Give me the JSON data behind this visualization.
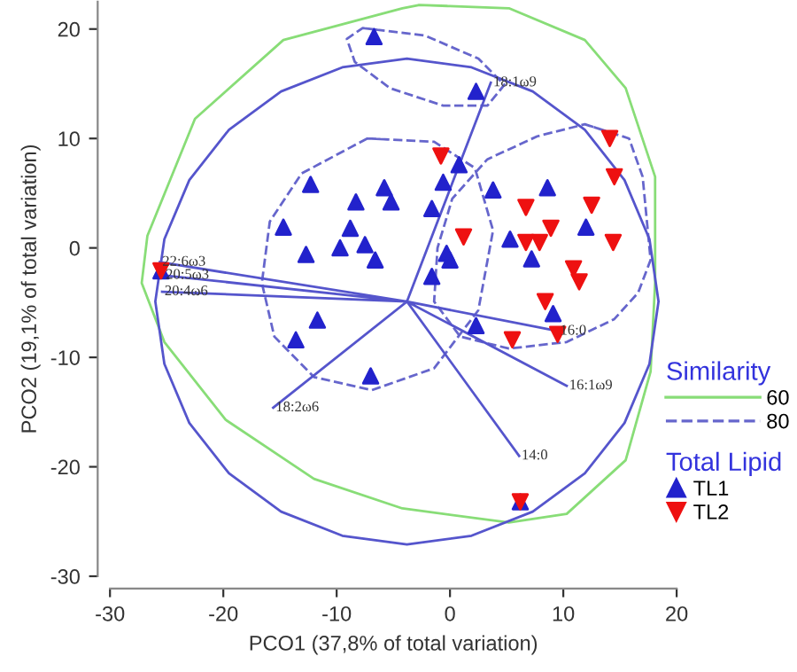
{
  "chart_data": {
    "type": "scatter",
    "xlabel": "PCO1 (37,8% of total variation)",
    "ylabel": "PCO2 (19,1% of total variation)",
    "xlim": [
      -30,
      20
    ],
    "xticks": [
      -30,
      -20,
      -10,
      0,
      10,
      20
    ],
    "ylim": [
      -30,
      22.5
    ],
    "yticks": [
      -30,
      -20,
      -10,
      0,
      10,
      20
    ],
    "grid": false,
    "legend": "right",
    "legend_title": "Similarity",
    "series": [
      {
        "type": "line",
        "name": "60",
        "color": "#88dd77",
        "line_style": "solid",
        "x": [
          -2.7,
          5.2,
          11.9,
          15.5,
          18.1,
          18.1,
          17.7,
          15.5,
          10.3,
          5.2,
          -4.2,
          -12.0,
          -19.8,
          -25.2,
          -27.2,
          -26.7,
          -22.5,
          -14.7,
          -4.2,
          -2.7
        ],
        "values": [
          22.2,
          21.9,
          19.0,
          14.6,
          6.5,
          -3.2,
          -11.3,
          -19.4,
          -24.3,
          -25.1,
          -23.8,
          -21.1,
          -15.7,
          -8.6,
          -3.2,
          1.1,
          11.8,
          19.0,
          21.9,
          22.2
        ]
      },
      {
        "type": "line",
        "name": "80",
        "color": "#6666cc",
        "line_style": "dashed",
        "x": [
          -7.7,
          -2.2,
          2.5,
          4.8,
          3.3,
          -0.6,
          -5.3,
          -8.4,
          -9.1,
          -7.7,
          null,
          -7.3,
          -1.4,
          2.2,
          3.8,
          2.5,
          -1.4,
          -6.9,
          -12.0,
          -15.5,
          -16.6,
          -15.9,
          -13.1,
          -7.3,
          null,
          11.9,
          15.8,
          17.0,
          17.7,
          16.6,
          14.5,
          10.3,
          5.2,
          0.9,
          -1.4,
          -1.1,
          0.2,
          3.3,
          7.7,
          11.9
        ],
        "values": [
          20.1,
          19.4,
          17.3,
          14.9,
          13.0,
          13.0,
          14.6,
          17.0,
          19.1,
          20.1,
          null,
          10.0,
          9.7,
          7.3,
          1.6,
          -5.7,
          -11.0,
          -13.0,
          -11.8,
          -8.1,
          -3.2,
          2.4,
          6.8,
          10.0,
          null,
          11.3,
          10.0,
          6.5,
          -1.1,
          -4.1,
          -6.5,
          -8.6,
          -9.2,
          -8.1,
          -4.9,
          0.0,
          4.5,
          8.1,
          10.2,
          11.3
        ]
      },
      {
        "type": "line",
        "color": "#5555cc",
        "line_style": "solid",
        "x": [
          18.4,
          17.6,
          15.4,
          11.9,
          7.3,
          1.9,
          -3.8,
          -9.5,
          -14.9,
          -19.5,
          -23.0,
          -25.2,
          -26.0,
          -25.2,
          -23.0,
          -19.5,
          -14.9,
          -9.5,
          -3.8,
          1.9,
          7.3,
          11.9,
          15.4,
          17.6,
          18.4
        ],
        "values": [
          -4.9,
          0.8,
          6.2,
          10.8,
          14.3,
          16.5,
          17.3,
          16.5,
          14.3,
          10.8,
          6.2,
          0.8,
          -4.9,
          -10.6,
          -16.0,
          -20.6,
          -24.1,
          -26.3,
          -27.1,
          -26.3,
          -24.1,
          -20.6,
          -16.0,
          -10.6,
          -4.9
        ]
      },
      {
        "type": "line",
        "color": "#5555cc",
        "line_style": "solid",
        "x": [
          -3.8,
          3.6,
          null,
          -3.8,
          -25.6,
          null,
          -3.8,
          -25.3,
          null,
          -3.8,
          -25.4,
          null,
          -3.8,
          -15.6,
          null,
          -3.8,
          9.5,
          null,
          -3.8,
          10.3,
          null,
          -3.8,
          6.1
        ],
        "values": [
          -4.9,
          15.1,
          null,
          -4.9,
          -1.3,
          null,
          -4.9,
          -2.5,
          null,
          -4.9,
          -4.0,
          null,
          -4.9,
          -14.6,
          null,
          -4.9,
          -7.6,
          null,
          -4.9,
          -12.6,
          null,
          -4.9,
          -19.0
        ]
      },
      {
        "name": "TL1",
        "color": "#2222cc",
        "marker": "triangle",
        "x": [
          -6.7,
          2.3,
          -12.3,
          -8.3,
          -5.8,
          -5.2,
          -14.7,
          -8.8,
          -12.7,
          -9.7,
          -7.5,
          -6.6,
          0.8,
          -0.6,
          -1.6,
          3.8,
          8.6,
          12.0,
          5.3,
          7.2,
          -0.3,
          0.0,
          -1.6,
          -11.7,
          -13.6,
          -7.0,
          9.1,
          2.3,
          6.2,
          -25.5
        ],
        "values": [
          19.3,
          14.3,
          5.8,
          4.2,
          5.5,
          4.2,
          1.9,
          1.8,
          -0.6,
          0.0,
          0.3,
          -1.1,
          7.6,
          6.0,
          3.6,
          5.3,
          5.5,
          1.9,
          0.8,
          -1.0,
          -0.5,
          -1.1,
          -2.6,
          -6.6,
          -8.4,
          -11.7,
          -6.0,
          -7.1,
          -23.2,
          -2.1
        ]
      },
      {
        "name": "TL2",
        "color": "#ee1111",
        "marker": "triangle-down",
        "x": [
          -0.8,
          14.1,
          14.5,
          6.7,
          12.5,
          8.9,
          1.2,
          6.7,
          7.9,
          14.4,
          10.9,
          11.4,
          8.4,
          9.5,
          5.5,
          6.2,
          -25.5
        ],
        "values": [
          8.4,
          10.0,
          6.5,
          3.7,
          3.9,
          1.8,
          1.0,
          0.5,
          0.5,
          0.5,
          -1.9,
          -3.1,
          -4.9,
          -7.9,
          -8.4,
          -23.2,
          -2.1
        ]
      }
    ],
    "annotations": [
      "Total Lipid",
      {
        "text": "18:1ω9",
        "x": 3.6,
        "y": 15.1
      },
      {
        "text": "22:6ω3",
        "x": -25.6,
        "y": -1.3
      },
      {
        "text": "20:5ω3",
        "x": -25.3,
        "y": -2.5
      },
      {
        "text": "20:4ω6",
        "x": -25.4,
        "y": -4.0
      },
      {
        "text": "18:2ω6",
        "x": -15.6,
        "y": -14.6
      },
      {
        "text": "16:0",
        "x": 9.5,
        "y": -7.6
      },
      {
        "text": "16:1ω9",
        "x": 10.3,
        "y": -12.6
      },
      {
        "text": "14:0",
        "x": 6.1,
        "y": -19.0
      }
    ]
  }
}
